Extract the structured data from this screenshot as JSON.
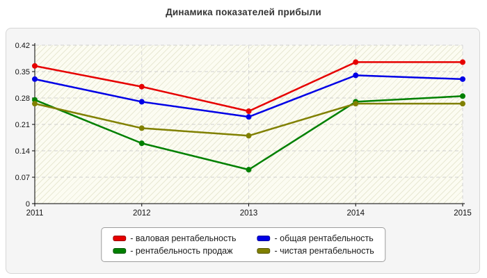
{
  "page": {
    "title": "Динамика показателей прибыли"
  },
  "chart_data": {
    "type": "line",
    "title": "Динамика показателей прибыли",
    "categories": [
      "2011",
      "2012",
      "2013",
      "2014",
      "2015"
    ],
    "series": [
      {
        "key": "gross-margin",
        "name": "валовая рентабельность",
        "color": "#e60000",
        "values": [
          0.365,
          0.31,
          0.245,
          0.375,
          0.375
        ]
      },
      {
        "key": "overall-margin",
        "name": "общая рентабельность",
        "color": "#0000e6",
        "values": [
          0.33,
          0.27,
          0.23,
          0.34,
          0.33
        ]
      },
      {
        "key": "sales-margin",
        "name": "рентабельность продаж",
        "color": "#008000",
        "values": [
          0.275,
          0.16,
          0.09,
          0.27,
          0.285
        ]
      },
      {
        "key": "net-margin",
        "name": "чистая рентабельность",
        "color": "#808000",
        "values": [
          0.265,
          0.2,
          0.18,
          0.265,
          0.265
        ]
      }
    ],
    "xlabel": "",
    "ylabel": "",
    "ylim": [
      0,
      0.42
    ],
    "yticks": [
      0,
      0.07,
      0.14,
      0.21,
      0.28,
      0.35,
      0.42
    ],
    "ytick_labels": [
      "0",
      "0.07",
      "0.14",
      "0.21",
      "0.28",
      "0.35",
      "0.42"
    ],
    "grid": true,
    "legend_position": "bottom-center"
  },
  "legend": {
    "items": [
      {
        "key": "gross-margin",
        "label": "- валовая рентабельность",
        "color": "#e60000"
      },
      {
        "key": "overall-margin",
        "label": "- общая рентабельность",
        "color": "#0000e6"
      },
      {
        "key": "sales-margin",
        "label": "- рентабельность продаж",
        "color": "#008000"
      },
      {
        "key": "net-margin",
        "label": "- чистая рентабельность",
        "color": "#808000"
      }
    ]
  }
}
